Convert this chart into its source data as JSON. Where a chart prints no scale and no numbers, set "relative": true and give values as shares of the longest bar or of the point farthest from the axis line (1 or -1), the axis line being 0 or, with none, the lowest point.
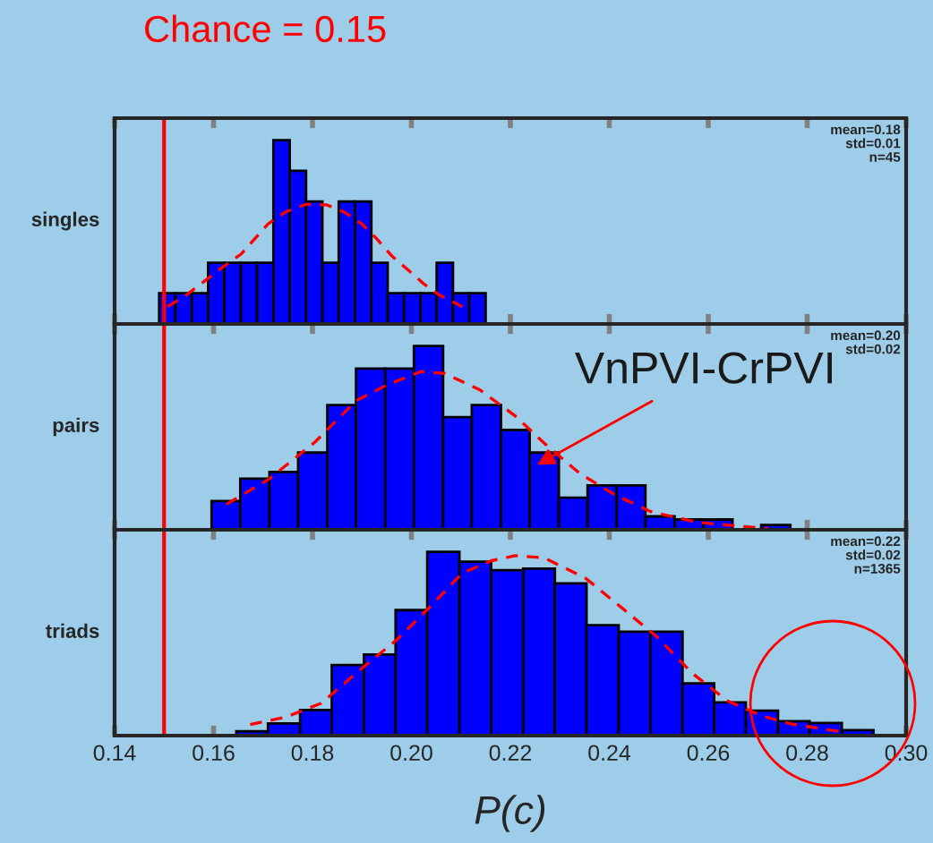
{
  "chart_data": [
    {
      "type": "histogram",
      "title": "Chance = 0.15",
      "ylabel": "singles",
      "relative": true,
      "xlim": [
        0.14,
        0.3
      ],
      "xticks": [
        {
          "value": 0.14,
          "label": null
        },
        {
          "value": 0.16,
          "label": null
        },
        {
          "value": 0.18,
          "label": null
        },
        {
          "value": 0.2,
          "label": null
        },
        {
          "value": 0.22,
          "label": null
        },
        {
          "value": 0.24,
          "label": null
        },
        {
          "value": 0.26,
          "label": null
        },
        {
          "value": 0.28,
          "label": null
        },
        {
          "value": 0.3,
          "label": null
        }
      ],
      "tick_labels": false,
      "grid": false,
      "legend": false,
      "series": [
        {
          "type": "histogram",
          "color": "#0000ff",
          "bins": [
            0.149,
            0.1523,
            0.1556,
            0.1589,
            0.1622,
            0.1655,
            0.1688,
            0.1721,
            0.1754,
            0.1787,
            0.182,
            0.1853,
            0.1886,
            0.1919,
            0.1952,
            0.1985,
            0.2018,
            0.2051,
            0.2084,
            0.2117,
            0.215
          ],
          "values": [
            0.167,
            0.167,
            0.167,
            0.333,
            0.333,
            0.333,
            0.333,
            1,
            0.833,
            0.667,
            0.333,
            0.667,
            0.667,
            0.333,
            0.167,
            0.167,
            0.167,
            0.333,
            0.167,
            0.167
          ]
        },
        {
          "type": "line",
          "color": "#ff0000",
          "line_style": "dashed",
          "x": [
            0.1507,
            0.1543,
            0.1614,
            0.1656,
            0.171,
            0.1745,
            0.1787,
            0.1829,
            0.1864,
            0.19,
            0.193,
            0.196,
            0.1995,
            0.2025,
            0.2055,
            0.2103
          ],
          "values": [
            0.094,
            0.153,
            0.3,
            0.381,
            0.544,
            0.609,
            0.651,
            0.648,
            0.609,
            0.544,
            0.463,
            0.371,
            0.29,
            0.218,
            0.16,
            0.094
          ]
        }
      ],
      "ref_lines": [
        {
          "axis": "x",
          "value": 0.15,
          "color": "#ff0000"
        }
      ],
      "annotations": [
        "mean=0.18\nstd=0.01\nn=45"
      ]
    },
    {
      "type": "histogram",
      "ylabel": "pairs",
      "relative": true,
      "xlim": [
        0.14,
        0.3
      ],
      "xticks": [
        {
          "value": 0.14,
          "label": null
        },
        {
          "value": 0.16,
          "label": null
        },
        {
          "value": 0.18,
          "label": null
        },
        {
          "value": 0.2,
          "label": null
        },
        {
          "value": 0.22,
          "label": null
        },
        {
          "value": 0.24,
          "label": null
        },
        {
          "value": 0.26,
          "label": null
        },
        {
          "value": 0.28,
          "label": null
        },
        {
          "value": 0.3,
          "label": null
        }
      ],
      "tick_labels": false,
      "grid": false,
      "legend": false,
      "series": [
        {
          "type": "histogram",
          "color": "#0000ff",
          "bins": [
            0.1596,
            0.1654,
            0.1713,
            0.1771,
            0.183,
            0.1888,
            0.1947,
            0.2005,
            0.2064,
            0.2122,
            0.2181,
            0.2239,
            0.2298,
            0.2356,
            0.2415,
            0.2473,
            0.2532,
            0.259,
            0.2649,
            0.2707,
            0.2766
          ],
          "values": [
            0.156,
            0.278,
            0.315,
            0.42,
            0.679,
            0.877,
            0.877,
            1,
            0.613,
            0.679,
            0.543,
            0.42,
            0.175,
            0.242,
            0.242,
            0.073,
            0.056,
            0.056,
            null,
            0.026
          ]
        },
        {
          "type": "line",
          "color": "#ff0000",
          "line_style": "dashed",
          "x": [
            0.1626,
            0.171,
            0.1805,
            0.1888,
            0.1948,
            0.2019,
            0.2067,
            0.2138,
            0.221,
            0.2269,
            0.2341,
            0.2412,
            0.2484,
            0.2579,
            0.2674,
            0.2721
          ],
          "values": [
            0.139,
            0.272,
            0.477,
            0.702,
            0.785,
            0.861,
            0.851,
            0.762,
            0.619,
            0.47,
            0.305,
            0.189,
            0.099,
            0.04,
            0.017,
            0.007
          ]
        }
      ],
      "ref_lines": [
        {
          "axis": "x",
          "value": 0.15,
          "color": "#ff0000"
        }
      ],
      "annotations": [
        "mean=0.20\nstd=0.02",
        {
          "text": "VnPVI-CrPVI",
          "x": 0.2245,
          "y": 0.34
        }
      ]
    },
    {
      "type": "histogram",
      "ylabel": "triads",
      "xlabel": "P(c)",
      "relative": true,
      "xlim": [
        0.14,
        0.3
      ],
      "xticks": [
        {
          "value": 0.14,
          "label": "0.14"
        },
        {
          "value": 0.16,
          "label": "0.16"
        },
        {
          "value": 0.18,
          "label": "0.18"
        },
        {
          "value": 0.2,
          "label": "0.20"
        },
        {
          "value": 0.22,
          "label": "0.22"
        },
        {
          "value": 0.24,
          "label": "0.24"
        },
        {
          "value": 0.26,
          "label": "0.26"
        },
        {
          "value": 0.28,
          "label": "0.28"
        },
        {
          "value": 0.3,
          "label": "0.30"
        }
      ],
      "tick_labels": "x",
      "grid": false,
      "legend": false,
      "series": [
        {
          "type": "histogram",
          "color": "#0000ff",
          "bins": [
            0.1646,
            0.171,
            0.1775,
            0.1839,
            0.1904,
            0.1968,
            0.2032,
            0.2097,
            0.2161,
            0.2226,
            0.229,
            0.2354,
            0.2419,
            0.2483,
            0.2548,
            0.2612,
            0.2676,
            0.2741,
            0.2805,
            0.287,
            0.2934
          ],
          "values": [
            0.024,
            0.066,
            0.139,
            0.384,
            0.441,
            0.683,
            1,
            0.946,
            0.9,
            0.909,
            0.828,
            0.601,
            0.565,
            0.565,
            0.284,
            0.181,
            0.136,
            0.079,
            0.069,
            0.03
          ]
        },
        {
          "type": "line",
          "color": "#ff0000",
          "line_style": "dashed",
          "x": [
            0.1674,
            0.1745,
            0.1817,
            0.19,
            0.1971,
            0.2031,
            0.2103,
            0.2162,
            0.221,
            0.2269,
            0.2353,
            0.2424,
            0.2496,
            0.2567,
            0.2638,
            0.271,
            0.2769,
            0.2876
          ],
          "values": [
            0.06,
            0.1,
            0.175,
            0.366,
            0.523,
            0.683,
            0.885,
            0.952,
            0.979,
            0.967,
            0.855,
            0.698,
            0.538,
            0.341,
            0.19,
            0.106,
            0.063,
            0.018
          ]
        }
      ],
      "ref_lines": [
        {
          "axis": "x",
          "value": 0.15,
          "color": "#ff0000"
        }
      ],
      "annotations": [
        "mean=0.22\nstd=0.02\nn=1365"
      ]
    }
  ]
}
